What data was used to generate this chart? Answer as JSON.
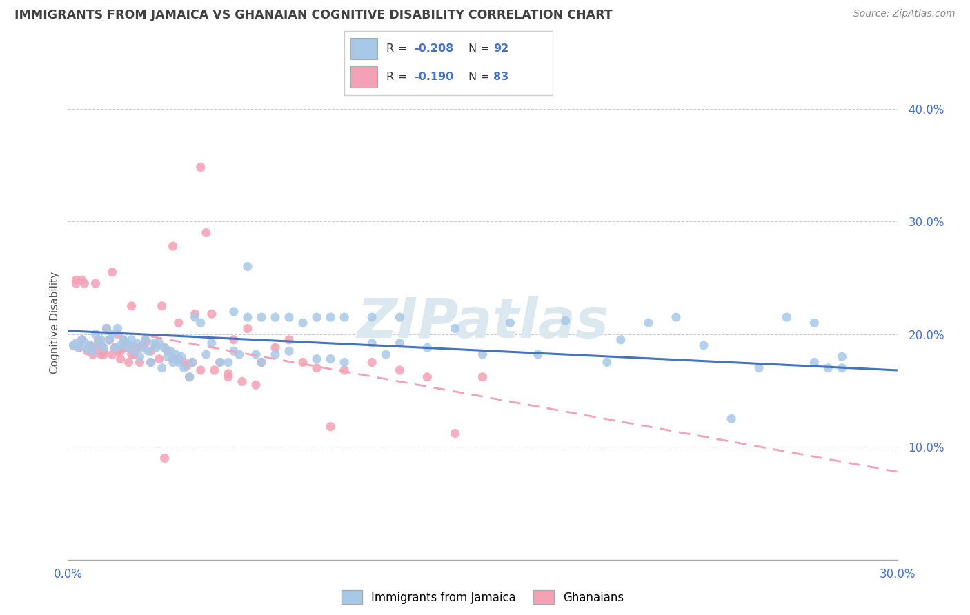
{
  "title": "IMMIGRANTS FROM JAMAICA VS GHANAIAN COGNITIVE DISABILITY CORRELATION CHART",
  "source": "Source: ZipAtlas.com",
  "ylabel": "Cognitive Disability",
  "xlim": [
    0.0,
    0.3
  ],
  "ylim": [
    0.0,
    0.42
  ],
  "yticks": [
    0.1,
    0.2,
    0.3,
    0.4
  ],
  "ytick_labels": [
    "10.0%",
    "20.0%",
    "30.0%",
    "40.0%"
  ],
  "xticks": [
    0.0,
    0.05,
    0.1,
    0.15,
    0.2,
    0.25,
    0.3
  ],
  "xtick_labels": [
    "0.0%",
    "",
    "",
    "",
    "",
    "",
    "30.0%"
  ],
  "legend_r_blue": "-0.208",
  "legend_n_blue": "92",
  "legend_r_pink": "-0.190",
  "legend_n_pink": "83",
  "legend_label_blue": "Immigrants from Jamaica",
  "legend_label_pink": "Ghanaians",
  "blue_color": "#a8c8e8",
  "pink_color": "#f4a0b5",
  "blue_dot_edge": "#7aace0",
  "pink_dot_edge": "#e87090",
  "blue_line_color": "#4472c4",
  "pink_line_color": "#f4a0b5",
  "scatter_blue_x": [
    0.002,
    0.003,
    0.004,
    0.005,
    0.006,
    0.007,
    0.008,
    0.009,
    0.01,
    0.011,
    0.012,
    0.013,
    0.014,
    0.015,
    0.016,
    0.017,
    0.018,
    0.019,
    0.02,
    0.021,
    0.022,
    0.023,
    0.024,
    0.025,
    0.026,
    0.027,
    0.028,
    0.029,
    0.03,
    0.031,
    0.032,
    0.033,
    0.034,
    0.035,
    0.036,
    0.037,
    0.038,
    0.039,
    0.04,
    0.041,
    0.042,
    0.044,
    0.045,
    0.046,
    0.048,
    0.05,
    0.052,
    0.055,
    0.058,
    0.06,
    0.062,
    0.065,
    0.068,
    0.07,
    0.075,
    0.08,
    0.09,
    0.095,
    0.1,
    0.11,
    0.115,
    0.12,
    0.13,
    0.14,
    0.15,
    0.16,
    0.17,
    0.18,
    0.195,
    0.2,
    0.21,
    0.22,
    0.23,
    0.24,
    0.25,
    0.26,
    0.27,
    0.275,
    0.28,
    0.06,
    0.065,
    0.07,
    0.075,
    0.08,
    0.085,
    0.09,
    0.095,
    0.1,
    0.11,
    0.12,
    0.27,
    0.28
  ],
  "scatter_blue_y": [
    0.19,
    0.192,
    0.188,
    0.195,
    0.193,
    0.187,
    0.19,
    0.185,
    0.2,
    0.192,
    0.195,
    0.188,
    0.205,
    0.195,
    0.2,
    0.188,
    0.205,
    0.19,
    0.195,
    0.192,
    0.188,
    0.195,
    0.185,
    0.192,
    0.18,
    0.188,
    0.195,
    0.185,
    0.175,
    0.192,
    0.188,
    0.192,
    0.17,
    0.188,
    0.18,
    0.185,
    0.175,
    0.182,
    0.175,
    0.18,
    0.17,
    0.162,
    0.175,
    0.215,
    0.21,
    0.182,
    0.192,
    0.175,
    0.175,
    0.185,
    0.182,
    0.26,
    0.182,
    0.175,
    0.182,
    0.185,
    0.178,
    0.178,
    0.175,
    0.192,
    0.182,
    0.192,
    0.188,
    0.205,
    0.182,
    0.21,
    0.182,
    0.212,
    0.175,
    0.195,
    0.21,
    0.215,
    0.19,
    0.125,
    0.17,
    0.215,
    0.21,
    0.17,
    0.17,
    0.22,
    0.215,
    0.215,
    0.215,
    0.215,
    0.21,
    0.215,
    0.215,
    0.215,
    0.215,
    0.215,
    0.175,
    0.18
  ],
  "scatter_pink_x": [
    0.002,
    0.003,
    0.004,
    0.005,
    0.006,
    0.007,
    0.008,
    0.009,
    0.01,
    0.011,
    0.012,
    0.013,
    0.014,
    0.015,
    0.016,
    0.017,
    0.018,
    0.019,
    0.02,
    0.021,
    0.022,
    0.023,
    0.024,
    0.025,
    0.026,
    0.027,
    0.028,
    0.03,
    0.032,
    0.034,
    0.036,
    0.038,
    0.04,
    0.042,
    0.044,
    0.046,
    0.048,
    0.05,
    0.052,
    0.055,
    0.058,
    0.06,
    0.065,
    0.07,
    0.075,
    0.08,
    0.085,
    0.09,
    0.095,
    0.1,
    0.11,
    0.12,
    0.13,
    0.14,
    0.15,
    0.003,
    0.005,
    0.008,
    0.01,
    0.012,
    0.015,
    0.018,
    0.02,
    0.023,
    0.025,
    0.028,
    0.03,
    0.033,
    0.035,
    0.038,
    0.04,
    0.043,
    0.045,
    0.048,
    0.053,
    0.058,
    0.063,
    0.068,
    0.013,
    0.016,
    0.019,
    0.022,
    0.035
  ],
  "scatter_pink_y": [
    0.19,
    0.245,
    0.188,
    0.195,
    0.245,
    0.185,
    0.19,
    0.182,
    0.245,
    0.195,
    0.19,
    0.185,
    0.205,
    0.195,
    0.255,
    0.188,
    0.2,
    0.185,
    0.195,
    0.188,
    0.19,
    0.225,
    0.182,
    0.188,
    0.175,
    0.19,
    0.195,
    0.175,
    0.19,
    0.225,
    0.185,
    0.278,
    0.21,
    0.175,
    0.162,
    0.218,
    0.348,
    0.29,
    0.218,
    0.175,
    0.165,
    0.195,
    0.205,
    0.175,
    0.188,
    0.195,
    0.175,
    0.17,
    0.118,
    0.168,
    0.175,
    0.168,
    0.162,
    0.112,
    0.162,
    0.248,
    0.248,
    0.19,
    0.188,
    0.182,
    0.195,
    0.185,
    0.188,
    0.182,
    0.188,
    0.192,
    0.185,
    0.178,
    0.188,
    0.178,
    0.178,
    0.172,
    0.175,
    0.168,
    0.168,
    0.162,
    0.158,
    0.155,
    0.182,
    0.182,
    0.178,
    0.175,
    0.09
  ],
  "blue_trend_x": [
    0.0,
    0.3
  ],
  "blue_trend_y": [
    0.203,
    0.168
  ],
  "pink_trend_x": [
    0.03,
    0.3
  ],
  "pink_trend_y": [
    0.198,
    0.078
  ],
  "background_color": "#ffffff",
  "grid_color": "#cccccc",
  "title_color": "#404040",
  "axis_tick_color": "#4472c4",
  "ylabel_color": "#555555",
  "watermark_color": "#dce8f0",
  "source_color": "#888888"
}
